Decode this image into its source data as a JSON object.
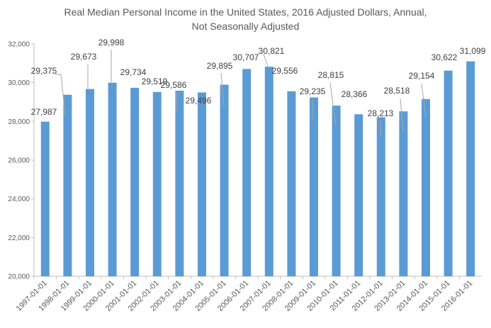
{
  "chart_data": {
    "type": "bar",
    "title": "Real Median Personal Income in the United States, 2016 Adjusted Dollars, Annual,",
    "subtitle": "Not Seasonally Adjusted",
    "xlabel": "",
    "ylabel": "",
    "ylim": [
      20000,
      32000
    ],
    "yticks": [
      20000,
      22000,
      24000,
      26000,
      28000,
      30000,
      32000
    ],
    "ytick_labels": [
      "20,000",
      "22,000",
      "24,000",
      "26,000",
      "28,000",
      "30,000",
      "32,000"
    ],
    "grid": false,
    "legend": "none",
    "bar_color": "#5b9bd5",
    "label_color": "#404040",
    "axis_color": "#bfbfbf",
    "categories": [
      "1997-01-01",
      "1998-01-01",
      "1999-01-01",
      "2000-01-01",
      "2001-01-01",
      "2002-01-01",
      "2003-01-01",
      "2004-01-01",
      "2005-01-01",
      "2006-01-01",
      "2007-01-01",
      "2008-01-01",
      "2009-01-01",
      "2010-01-01",
      "2011-01-01",
      "2012-01-01",
      "2013-01-01",
      "2014-01-01",
      "2015-01-01",
      "2016-01-01"
    ],
    "values": [
      27987,
      29375,
      29673,
      29998,
      29734,
      29519,
      29586,
      29496,
      29895,
      30707,
      30821,
      29556,
      29235,
      28815,
      28366,
      28213,
      28518,
      29154,
      30622,
      31099
    ],
    "data_labels": [
      "27,987",
      "29,375",
      "29,673",
      "29,998",
      "29,734",
      "29,519",
      "29,586",
      "29,496",
      "29,895",
      "30,707",
      "30,821",
      "29,556",
      "29,235",
      "28,815",
      "28,366",
      "28,213",
      "28,518",
      "29,154",
      "30,622",
      "31,099"
    ]
  }
}
